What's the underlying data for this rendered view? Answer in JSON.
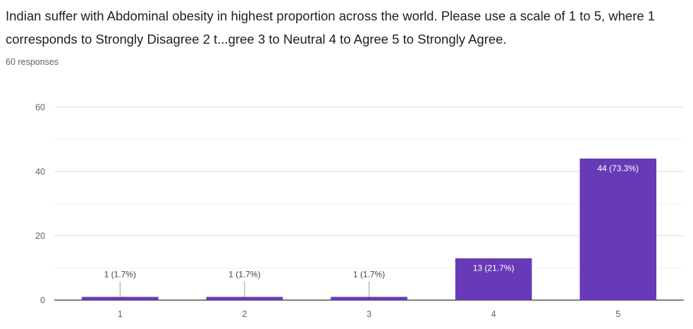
{
  "header": {
    "question": "Indian suffer with Abdominal obesity in highest proportion across the world.  Please use a scale of 1 to 5, where 1 corresponds to  Strongly Disagree 2 t...gree 3 to Neutral 4 to  Agree 5 to Strongly Agree.",
    "responses": "60 responses"
  },
  "chart_data": {
    "type": "bar",
    "categories": [
      "1",
      "2",
      "3",
      "4",
      "5"
    ],
    "values": [
      1,
      1,
      1,
      13,
      44
    ],
    "data_labels": [
      "1 (1.7%)",
      "1 (1.7%)",
      "1 (1.7%)",
      "13 (21.7%)",
      "44 (73.3%)"
    ],
    "ylim": [
      0,
      60
    ],
    "yticks": [
      0,
      20,
      40,
      60
    ],
    "grid": true,
    "bar_color": "#673ab7"
  }
}
